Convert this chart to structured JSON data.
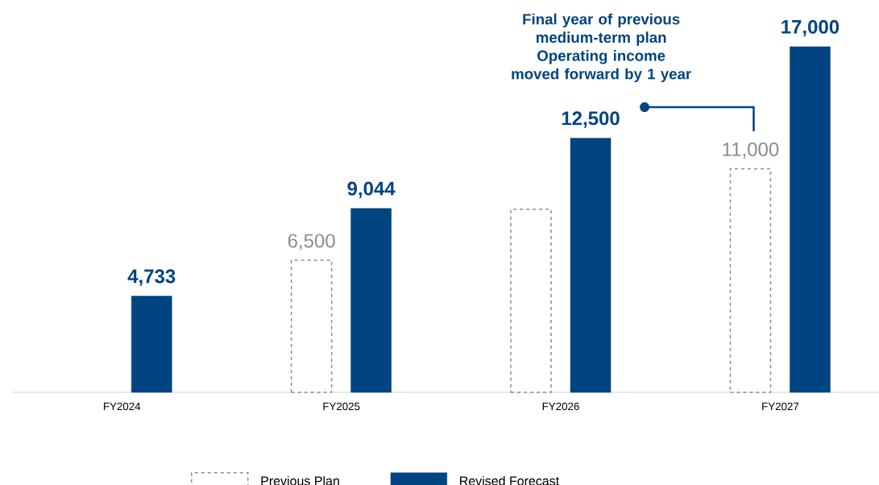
{
  "chart_data": {
    "type": "bar",
    "categories": [
      "FY2024",
      "FY2025",
      "FY2026",
      "FY2027"
    ],
    "series": [
      {
        "name": "Previous Plan",
        "color": "#8c8c8c",
        "line_style": "dashed",
        "values": [
          null,
          6500,
          9000,
          11000
        ],
        "value_labels": [
          null,
          "6,500",
          null,
          "11,000"
        ]
      },
      {
        "name": "Revised Forecast",
        "color": "#004481",
        "line_style": "solid",
        "values": [
          4733,
          9044,
          12500,
          17000
        ],
        "value_labels": [
          "4,733",
          "9,044",
          "12,500",
          "17,000"
        ]
      }
    ],
    "legend": "bottom",
    "annotations": [
      "Final year of previous medium-term plan",
      "Operating income moved forward by 1 year"
    ]
  }
}
